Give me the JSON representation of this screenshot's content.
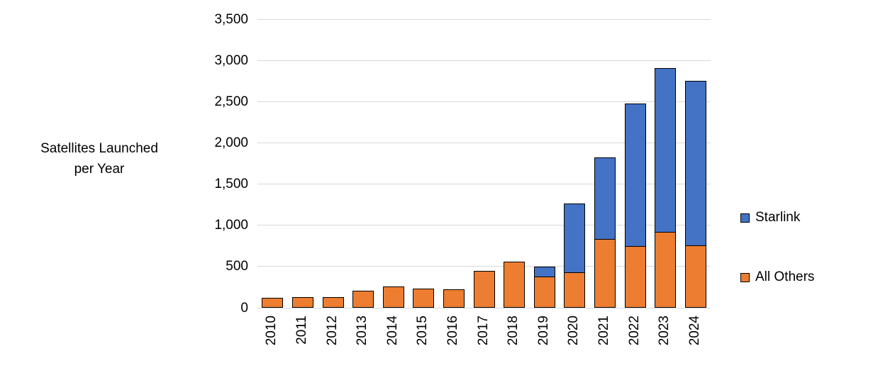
{
  "axis_title": {
    "line1": "Satellites Launched",
    "line2": "per Year"
  },
  "legend": {
    "items": [
      {
        "label": "Starlink",
        "color": "#4472C4"
      },
      {
        "label": "All Others",
        "color": "#ED7D31"
      }
    ]
  },
  "chart_data": {
    "type": "bar",
    "stacked": true,
    "title": "Satellites Launched per Year",
    "xlabel": "",
    "ylabel": "Satellites Launched per Year",
    "categories": [
      "2010",
      "2011",
      "2012",
      "2013",
      "2014",
      "2015",
      "2016",
      "2017",
      "2018",
      "2019",
      "2020",
      "2021",
      "2022",
      "2023",
      "2024"
    ],
    "series": [
      {
        "name": "All Others",
        "color": "#ED7D31",
        "values": [
          120,
          130,
          130,
          210,
          260,
          230,
          220,
          450,
          560,
          380,
          430,
          830,
          750,
          920,
          760
        ]
      },
      {
        "name": "Starlink",
        "color": "#4472C4",
        "values": [
          0,
          0,
          0,
          0,
          0,
          0,
          0,
          0,
          0,
          120,
          830,
          990,
          1730,
          1990,
          1990
        ]
      }
    ],
    "totals": [
      120,
      130,
      130,
      210,
      260,
      230,
      220,
      450,
      560,
      500,
      1260,
      1820,
      2480,
      2910,
      2750
    ],
    "ylim": [
      0,
      3500
    ],
    "ytick_interval": 500,
    "ytick_labels": [
      "0",
      "500",
      "1,000",
      "1,500",
      "2,000",
      "2,500",
      "3,000",
      "3,500"
    ],
    "grid": true,
    "gridline_color": "#D9D9D9",
    "bar_border_color": "#000000",
    "legend_position": "right"
  }
}
